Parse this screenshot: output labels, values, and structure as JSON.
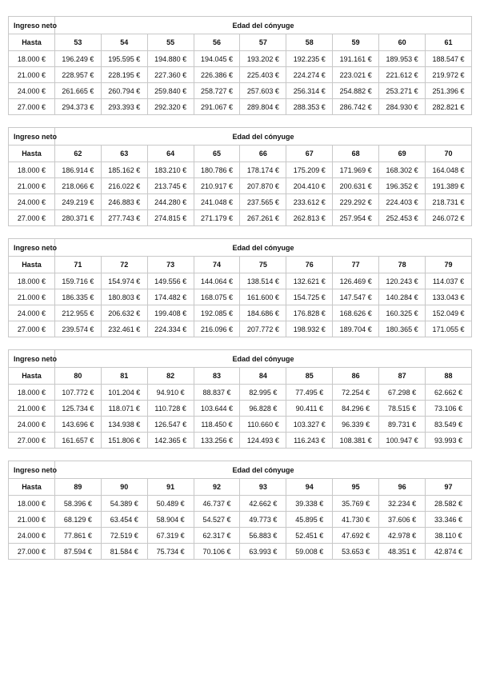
{
  "labels": {
    "income_header": "Ingreso neto",
    "age_header": "Edad del cónyuge",
    "row_header": "Hasta"
  },
  "row_incomes": [
    "18.000 €",
    "21.000 €",
    "24.000 €",
    "27.000 €"
  ],
  "tables": [
    {
      "ages": [
        "53",
        "54",
        "55",
        "56",
        "57",
        "58",
        "59",
        "60",
        "61"
      ],
      "rows": [
        [
          "196.249 €",
          "195.595 €",
          "194.880 €",
          "194.045 €",
          "193.202 €",
          "192.235 €",
          "191.161 €",
          "189.953 €",
          "188.547 €"
        ],
        [
          "228.957 €",
          "228.195 €",
          "227.360 €",
          "226.386 €",
          "225.403 €",
          "224.274 €",
          "223.021 €",
          "221.612 €",
          "219.972 €"
        ],
        [
          "261.665 €",
          "260.794 €",
          "259.840 €",
          "258.727 €",
          "257.603 €",
          "256.314 €",
          "254.882 €",
          "253.271 €",
          "251.396 €"
        ],
        [
          "294.373 €",
          "293.393 €",
          "292.320 €",
          "291.067 €",
          "289.804 €",
          "288.353 €",
          "286.742 €",
          "284.930 €",
          "282.821 €"
        ]
      ]
    },
    {
      "ages": [
        "62",
        "63",
        "64",
        "65",
        "66",
        "67",
        "68",
        "69",
        "70"
      ],
      "rows": [
        [
          "186.914 €",
          "185.162 €",
          "183.210 €",
          "180.786 €",
          "178.174 €",
          "175.209 €",
          "171.969 €",
          "168.302 €",
          "164.048 €"
        ],
        [
          "218.066 €",
          "216.022 €",
          "213.745 €",
          "210.917 €",
          "207.870 €",
          "204.410 €",
          "200.631 €",
          "196.352 €",
          "191.389 €"
        ],
        [
          "249.219 €",
          "246.883 €",
          "244.280 €",
          "241.048 €",
          "237.565 €",
          "233.612 €",
          "229.292 €",
          "224.403 €",
          "218.731 €"
        ],
        [
          "280.371 €",
          "277.743 €",
          "274.815 €",
          "271.179 €",
          "267.261 €",
          "262.813 €",
          "257.954 €",
          "252.453 €",
          "246.072 €"
        ]
      ]
    },
    {
      "ages": [
        "71",
        "72",
        "73",
        "74",
        "75",
        "76",
        "77",
        "78",
        "79"
      ],
      "rows": [
        [
          "159.716 €",
          "154.974 €",
          "149.556 €",
          "144.064 €",
          "138.514 €",
          "132.621 €",
          "126.469 €",
          "120.243 €",
          "114.037 €"
        ],
        [
          "186.335 €",
          "180.803 €",
          "174.482 €",
          "168.075 €",
          "161.600 €",
          "154.725 €",
          "147.547 €",
          "140.284 €",
          "133.043 €"
        ],
        [
          "212.955 €",
          "206.632 €",
          "199.408 €",
          "192.085 €",
          "184.686 €",
          "176.828 €",
          "168.626 €",
          "160.325 €",
          "152.049 €"
        ],
        [
          "239.574 €",
          "232.461 €",
          "224.334 €",
          "216.096 €",
          "207.772 €",
          "198.932 €",
          "189.704 €",
          "180.365 €",
          "171.055 €"
        ]
      ]
    },
    {
      "ages": [
        "80",
        "81",
        "82",
        "83",
        "84",
        "85",
        "86",
        "87",
        "88"
      ],
      "rows": [
        [
          "107.772 €",
          "101.204 €",
          "94.910 €",
          "88.837 €",
          "82.995 €",
          "77.495 €",
          "72.254 €",
          "67.298 €",
          "62.662 €"
        ],
        [
          "125.734 €",
          "118.071 €",
          "110.728 €",
          "103.644 €",
          "96.828 €",
          "90.411 €",
          "84.296 €",
          "78.515 €",
          "73.106 €"
        ],
        [
          "143.696 €",
          "134.938 €",
          "126.547 €",
          "118.450 €",
          "110.660 €",
          "103.327 €",
          "96.339 €",
          "89.731 €",
          "83.549 €"
        ],
        [
          "161.657 €",
          "151.806 €",
          "142.365 €",
          "133.256 €",
          "124.493 €",
          "116.243 €",
          "108.381 €",
          "100.947 €",
          "93.993 €"
        ]
      ]
    },
    {
      "ages": [
        "89",
        "90",
        "91",
        "92",
        "93",
        "94",
        "95",
        "96",
        "97"
      ],
      "rows": [
        [
          "58.396 €",
          "54.389 €",
          "50.489 €",
          "46.737 €",
          "42.662 €",
          "39.338 €",
          "35.769 €",
          "32.234 €",
          "28.582 €"
        ],
        [
          "68.129 €",
          "63.454 €",
          "58.904 €",
          "54.527 €",
          "49.773 €",
          "45.895 €",
          "41.730 €",
          "37.606 €",
          "33.346 €"
        ],
        [
          "77.861 €",
          "72.519 €",
          "67.319 €",
          "62.317 €",
          "56.883 €",
          "52.451 €",
          "47.692 €",
          "42.978 €",
          "38.110 €"
        ],
        [
          "87.594 €",
          "81.584 €",
          "75.734 €",
          "70.106 €",
          "63.993 €",
          "59.008 €",
          "53.653 €",
          "48.351 €",
          "42.874 €"
        ]
      ]
    }
  ]
}
